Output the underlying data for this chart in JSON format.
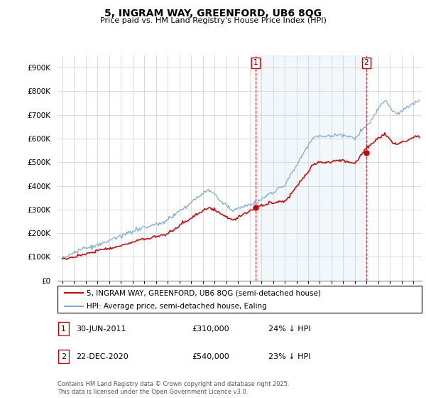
{
  "title": "5, INGRAM WAY, GREENFORD, UB6 8QG",
  "subtitle": "Price paid vs. HM Land Registry's House Price Index (HPI)",
  "legend_line1": "5, INGRAM WAY, GREENFORD, UB6 8QG (semi-detached house)",
  "legend_line2": "HPI: Average price, semi-detached house, Ealing",
  "annotation1_date": "30-JUN-2011",
  "annotation1_price": "£310,000",
  "annotation1_hpi": "24% ↓ HPI",
  "annotation2_date": "22-DEC-2020",
  "annotation2_price": "£540,000",
  "annotation2_hpi": "23% ↓ HPI",
  "footnote": "Contains HM Land Registry data © Crown copyright and database right 2025.\nThis data is licensed under the Open Government Licence v3.0.",
  "red_color": "#cc0000",
  "blue_color": "#7aadd4",
  "shade_color": "#ddeeff",
  "vline_color": "#cc0000",
  "ylim_max": 950000,
  "ylim_min": 0,
  "sale1_year": 2011.5,
  "sale1_price": 310000,
  "sale2_year": 2020.97,
  "sale2_price": 540000
}
